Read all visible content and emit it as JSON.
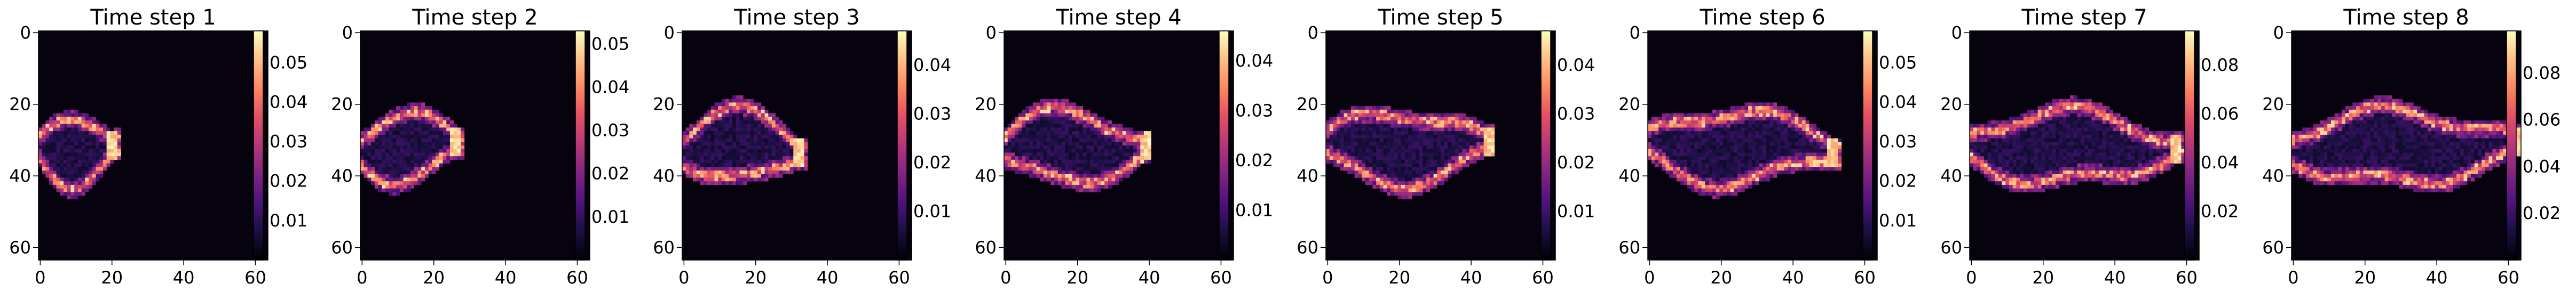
{
  "chart_data": [
    {
      "type": "heatmap",
      "title": "Time step 1",
      "xticks": [
        "0",
        "20",
        "40",
        "60"
      ],
      "yticks": [
        "0",
        "20",
        "40",
        "60"
      ],
      "colorbar_ticks": [
        0.01,
        0.02,
        0.03,
        0.04,
        0.05
      ],
      "colorbar_range": [
        0,
        0.058
      ],
      "colormap": "magma",
      "xlim": [
        0,
        63
      ],
      "ylim": [
        63,
        0
      ]
    },
    {
      "type": "heatmap",
      "title": "Time step 2",
      "xticks": [
        "0",
        "20",
        "40",
        "60"
      ],
      "yticks": [
        "0",
        "20",
        "40",
        "60"
      ],
      "colorbar_ticks": [
        0.01,
        0.02,
        0.03,
        0.04,
        0.05
      ],
      "colorbar_range": [
        0,
        0.053
      ],
      "colormap": "magma",
      "xlim": [
        0,
        63
      ],
      "ylim": [
        63,
        0
      ]
    },
    {
      "type": "heatmap",
      "title": "Time step 3",
      "xticks": [
        "0",
        "20",
        "40",
        "60"
      ],
      "yticks": [
        "0",
        "20",
        "40",
        "60"
      ],
      "colorbar_ticks": [
        0.01,
        0.02,
        0.03,
        0.04
      ],
      "colorbar_range": [
        0,
        0.047
      ],
      "colormap": "magma",
      "xlim": [
        0,
        63
      ],
      "ylim": [
        63,
        0
      ]
    },
    {
      "type": "heatmap",
      "title": "Time step 4",
      "xticks": [
        "0",
        "20",
        "40",
        "60"
      ],
      "yticks": [
        "0",
        "20",
        "40",
        "60"
      ],
      "colorbar_ticks": [
        0.01,
        0.02,
        0.03,
        0.04
      ],
      "colorbar_range": [
        0,
        0.046
      ],
      "colormap": "magma",
      "xlim": [
        0,
        63
      ],
      "ylim": [
        63,
        0
      ]
    },
    {
      "type": "heatmap",
      "title": "Time step 5",
      "xticks": [
        "0",
        "20",
        "40",
        "60"
      ],
      "yticks": [
        "0",
        "20",
        "40",
        "60"
      ],
      "colorbar_ticks": [
        0.01,
        0.02,
        0.03,
        0.04
      ],
      "colorbar_range": [
        0,
        0.047
      ],
      "colormap": "magma",
      "xlim": [
        0,
        63
      ],
      "ylim": [
        63,
        0
      ]
    },
    {
      "type": "heatmap",
      "title": "Time step 6",
      "xticks": [
        "0",
        "20",
        "40",
        "60"
      ],
      "yticks": [
        "0",
        "20",
        "40",
        "60"
      ],
      "colorbar_ticks": [
        0.01,
        0.02,
        0.03,
        0.04,
        0.05
      ],
      "colorbar_range": [
        0,
        0.058
      ],
      "colormap": "magma",
      "xlim": [
        0,
        63
      ],
      "ylim": [
        63,
        0
      ]
    },
    {
      "type": "heatmap",
      "title": "Time step 7",
      "xticks": [
        "0",
        "20",
        "40",
        "60"
      ],
      "yticks": [
        "0",
        "20",
        "40",
        "60"
      ],
      "colorbar_ticks": [
        0.02,
        0.04,
        0.06,
        0.08
      ],
      "colorbar_range": [
        0,
        0.094
      ],
      "colormap": "magma",
      "xlim": [
        0,
        63
      ],
      "ylim": [
        63,
        0
      ]
    },
    {
      "type": "heatmap",
      "title": "Time step 8",
      "xticks": [
        "0",
        "20",
        "40",
        "60"
      ],
      "yticks": [
        "0",
        "20",
        "40",
        "60"
      ],
      "colorbar_ticks": [
        0.02,
        0.04,
        0.06,
        0.08
      ],
      "colorbar_range": [
        0,
        0.098
      ],
      "colormap": "magma",
      "xlim": [
        0,
        63
      ],
      "ylim": [
        63,
        0
      ]
    }
  ]
}
